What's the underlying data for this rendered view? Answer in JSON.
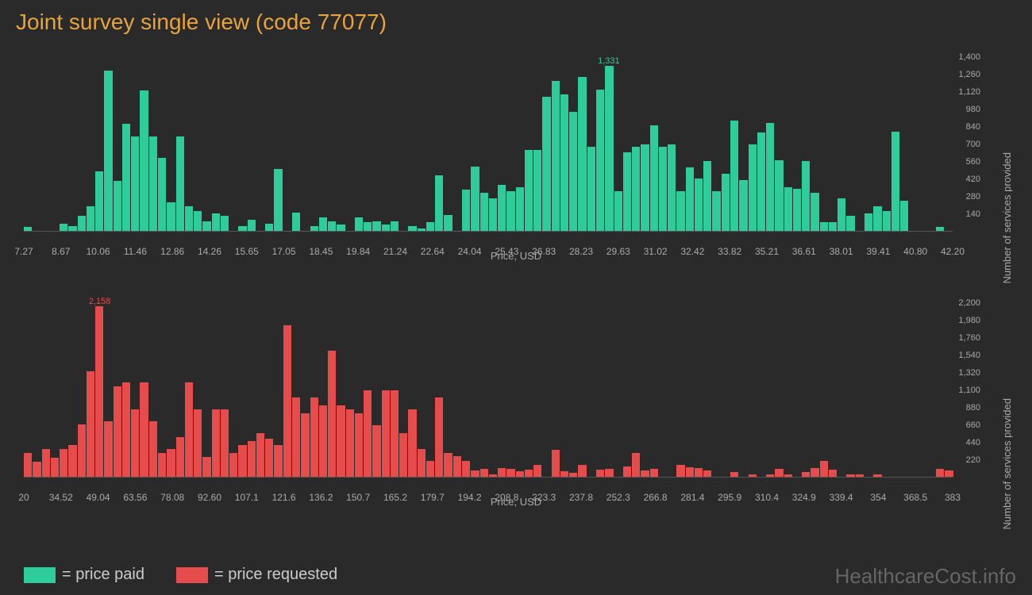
{
  "title": "Joint survey single view (code 77077)",
  "watermark": "HealthcareCost.info",
  "background_color": "#2a2a2a",
  "title_color": "#e8a33d",
  "axis_text_color": "#aaaaaa",
  "legend": [
    {
      "label": "= price paid",
      "color": "#2ecc9a"
    },
    {
      "label": "= price requested",
      "color": "#e74c4c"
    }
  ],
  "chart1": {
    "type": "histogram",
    "bar_color": "#2ecc9a",
    "x_label": "Price, USD",
    "y_label": "Number of services provided",
    "y_max": 1400,
    "y_ticks": [
      140,
      280,
      420,
      560,
      700,
      840,
      980,
      1120,
      1260,
      1400
    ],
    "x_ticks": [
      "7.27",
      "8.67",
      "10.06",
      "11.46",
      "12.86",
      "14.26",
      "15.65",
      "17.05",
      "18.45",
      "19.84",
      "21.24",
      "22.64",
      "24.04",
      "25.43",
      "26.83",
      "28.23",
      "29.63",
      "31.02",
      "32.42",
      "33.82",
      "35.21",
      "36.61",
      "38.01",
      "39.41",
      "40.80",
      "42.20"
    ],
    "peak_label": "1,331",
    "peak_index": 65,
    "values": [
      30,
      0,
      0,
      0,
      60,
      40,
      120,
      200,
      480,
      1290,
      400,
      860,
      760,
      1130,
      760,
      590,
      230,
      760,
      200,
      160,
      80,
      140,
      120,
      0,
      40,
      90,
      0,
      60,
      500,
      0,
      150,
      0,
      40,
      110,
      80,
      50,
      0,
      110,
      70,
      80,
      50,
      80,
      0,
      40,
      20,
      70,
      450,
      130,
      0,
      330,
      520,
      310,
      260,
      370,
      320,
      350,
      650,
      650,
      1080,
      1210,
      1100,
      960,
      1240,
      680,
      1140,
      1331,
      320,
      630,
      680,
      700,
      850,
      680,
      700,
      320,
      510,
      420,
      560,
      320,
      460,
      890,
      410,
      700,
      790,
      870,
      570,
      350,
      340,
      560,
      310,
      70,
      70,
      260,
      120,
      0,
      140,
      200,
      160,
      800,
      240,
      0,
      0,
      0,
      30,
      0
    ]
  },
  "chart2": {
    "type": "histogram",
    "bar_color": "#e74c4c",
    "x_label": "Price, USD",
    "y_label": "Number of services provided",
    "y_max": 2200,
    "y_ticks": [
      220,
      440,
      660,
      880,
      1100,
      1320,
      1540,
      1760,
      1980,
      2200
    ],
    "x_ticks": [
      "20",
      "34.52",
      "49.04",
      "63.56",
      "78.08",
      "92.60",
      "107.1",
      "121.6",
      "136.2",
      "150.7",
      "165.2",
      "179.7",
      "194.2",
      "208.8",
      "223.3",
      "237.8",
      "252.3",
      "266.8",
      "281.4",
      "295.9",
      "310.4",
      "324.9",
      "339.4",
      "354",
      "368.5",
      "383"
    ],
    "peak_label": "2,158",
    "peak_index": 8,
    "values": [
      300,
      190,
      350,
      240,
      350,
      400,
      660,
      1340,
      2158,
      700,
      1150,
      1200,
      850,
      1200,
      700,
      300,
      350,
      500,
      1200,
      850,
      250,
      850,
      850,
      300,
      400,
      450,
      550,
      480,
      400,
      1920,
      1000,
      800,
      1000,
      900,
      1600,
      900,
      850,
      800,
      1100,
      650,
      1100,
      1100,
      550,
      850,
      350,
      200,
      1000,
      300,
      260,
      200,
      80,
      100,
      30,
      110,
      100,
      70,
      90,
      150,
      0,
      340,
      70,
      50,
      150,
      0,
      90,
      100,
      0,
      130,
      300,
      80,
      100,
      0,
      0,
      150,
      120,
      110,
      80,
      0,
      0,
      60,
      0,
      30,
      0,
      30,
      100,
      30,
      0,
      60,
      110,
      200,
      90,
      0,
      30,
      30,
      0,
      30,
      0,
      0,
      0,
      0,
      0,
      0,
      100,
      80
    ]
  }
}
